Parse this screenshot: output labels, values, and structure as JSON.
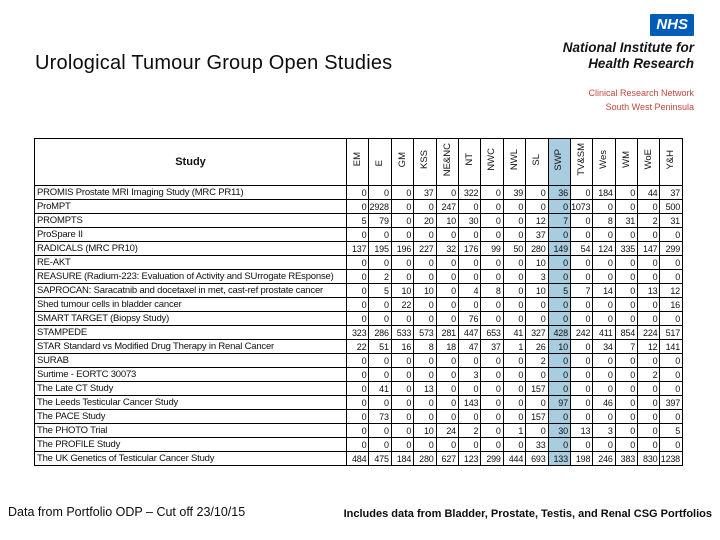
{
  "title": "Urological Tumour Group Open Studies",
  "brand": {
    "nhs": "NHS",
    "nihr_line1": "National Institute for",
    "nihr_line2": "Health Research",
    "crn_line1": "Clinical Research Network",
    "crn_line2": "South West Peninsula",
    "nhs_blue": "#005EB8",
    "crn_red": "#C6453E"
  },
  "table": {
    "study_header": "Study",
    "columns": [
      "EM",
      "E",
      "GM",
      "KSS",
      "NE&NC",
      "NT",
      "NWC",
      "NWL",
      "SL",
      "SWP",
      "TV&SM",
      "Wes",
      "WM",
      "WoE",
      "Y&H"
    ],
    "highlight_column": "SWP",
    "highlight_color": "#A9CDE0",
    "rows": [
      {
        "name": "PROMIS Prostate MRI Imaging Study (MRC PR11)",
        "values": [
          0,
          0,
          0,
          37,
          0,
          322,
          0,
          39,
          0,
          36,
          0,
          184,
          0,
          44,
          37
        ]
      },
      {
        "name": "ProMPT",
        "values": [
          0,
          2928,
          0,
          0,
          247,
          0,
          0,
          0,
          0,
          0,
          1073,
          0,
          0,
          0,
          500
        ]
      },
      {
        "name": "PROMPTS",
        "values": [
          5,
          79,
          0,
          20,
          10,
          30,
          0,
          0,
          12,
          7,
          0,
          8,
          31,
          2,
          31
        ]
      },
      {
        "name": "ProSpare II",
        "values": [
          0,
          0,
          0,
          0,
          0,
          0,
          0,
          0,
          37,
          0,
          0,
          0,
          0,
          0,
          0
        ]
      },
      {
        "name": "RADICALS (MRC PR10)",
        "values": [
          137,
          195,
          196,
          227,
          32,
          176,
          99,
          50,
          280,
          149,
          54,
          124,
          335,
          147,
          299
        ]
      },
      {
        "name": "RE-AKT",
        "values": [
          0,
          0,
          0,
          0,
          0,
          0,
          0,
          0,
          10,
          0,
          0,
          0,
          0,
          0,
          0
        ]
      },
      {
        "name": "REASURE (Radium-223: Evaluation of Activity and SUrrogate REsponse)",
        "values": [
          0,
          2,
          0,
          0,
          0,
          0,
          0,
          0,
          3,
          0,
          0,
          0,
          0,
          0,
          0
        ]
      },
      {
        "name": "SAPROCAN: Saracatnib and docetaxel in met, cast-ref prostate cancer",
        "values": [
          0,
          5,
          10,
          10,
          0,
          4,
          8,
          0,
          10,
          5,
          7,
          14,
          0,
          13,
          12
        ]
      },
      {
        "name": "Shed tumour cells in bladder cancer",
        "values": [
          0,
          0,
          22,
          0,
          0,
          0,
          0,
          0,
          0,
          0,
          0,
          0,
          0,
          0,
          16
        ]
      },
      {
        "name": "SMART TARGET (Biopsy Study)",
        "values": [
          0,
          0,
          0,
          0,
          0,
          76,
          0,
          0,
          0,
          0,
          0,
          0,
          0,
          0,
          0
        ]
      },
      {
        "name": "STAMPEDE",
        "values": [
          323,
          286,
          533,
          573,
          281,
          447,
          653,
          41,
          327,
          428,
          242,
          411,
          854,
          224,
          517
        ]
      },
      {
        "name": "STAR Standard vs Modified Drug Therapy in Renal Cancer",
        "values": [
          22,
          51,
          16,
          8,
          18,
          47,
          37,
          1,
          26,
          10,
          0,
          34,
          7,
          12,
          141
        ]
      },
      {
        "name": "SURAB",
        "values": [
          0,
          0,
          0,
          0,
          0,
          0,
          0,
          0,
          2,
          0,
          0,
          0,
          0,
          0,
          0
        ]
      },
      {
        "name": "Surtime - EORTC 30073",
        "values": [
          0,
          0,
          0,
          0,
          0,
          3,
          0,
          0,
          0,
          0,
          0,
          0,
          0,
          2,
          0
        ]
      },
      {
        "name": "The Late CT Study",
        "values": [
          0,
          41,
          0,
          13,
          0,
          0,
          0,
          0,
          157,
          0,
          0,
          0,
          0,
          0,
          0
        ]
      },
      {
        "name": "The Leeds Testicular Cancer Study",
        "values": [
          0,
          0,
          0,
          0,
          0,
          143,
          0,
          0,
          0,
          97,
          0,
          46,
          0,
          0,
          397
        ]
      },
      {
        "name": "The PACE Study",
        "values": [
          0,
          73,
          0,
          0,
          0,
          0,
          0,
          0,
          157,
          0,
          0,
          0,
          0,
          0,
          0
        ]
      },
      {
        "name": "The PHOTO Trial",
        "values": [
          0,
          0,
          0,
          10,
          24,
          2,
          0,
          1,
          0,
          30,
          13,
          3,
          0,
          0,
          5
        ]
      },
      {
        "name": "The PROFILE Study",
        "values": [
          0,
          0,
          0,
          0,
          0,
          0,
          0,
          0,
          33,
          0,
          0,
          0,
          0,
          0,
          0
        ]
      },
      {
        "name": "The UK Genetics of Testicular Cancer Study",
        "values": [
          484,
          475,
          184,
          280,
          627,
          123,
          299,
          444,
          693,
          133,
          198,
          246,
          383,
          830,
          1238
        ]
      }
    ]
  },
  "footer": {
    "left": "Data from Portfolio ODP – Cut off 23/10/15",
    "right": "Includes data from Bladder, Prostate, Testis, and Renal CSG Portfolios"
  }
}
